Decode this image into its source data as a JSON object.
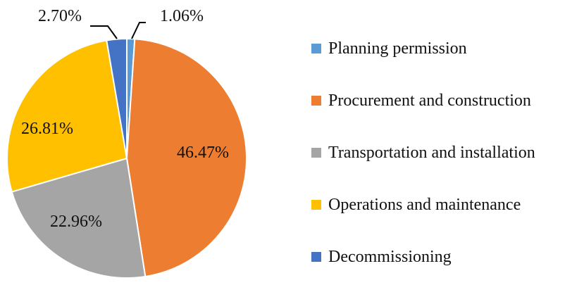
{
  "chart_data": {
    "type": "pie",
    "title": "",
    "start_angle_deg": 0,
    "direction": "clockwise",
    "legend_position": "right",
    "categories": [
      "Planning permission",
      "Procurement and construction",
      "Transportation and installation",
      "Operations and maintenance",
      "Decommissioning"
    ],
    "values": [
      1.06,
      46.47,
      22.96,
      26.81,
      2.7
    ],
    "labels": [
      "1.06%",
      "46.47%",
      "22.96%",
      "26.81%",
      "2.70%"
    ],
    "colors": [
      "#5B9BD5",
      "#ED7D31",
      "#A5A5A5",
      "#FFC000",
      "#4472C4"
    ]
  }
}
